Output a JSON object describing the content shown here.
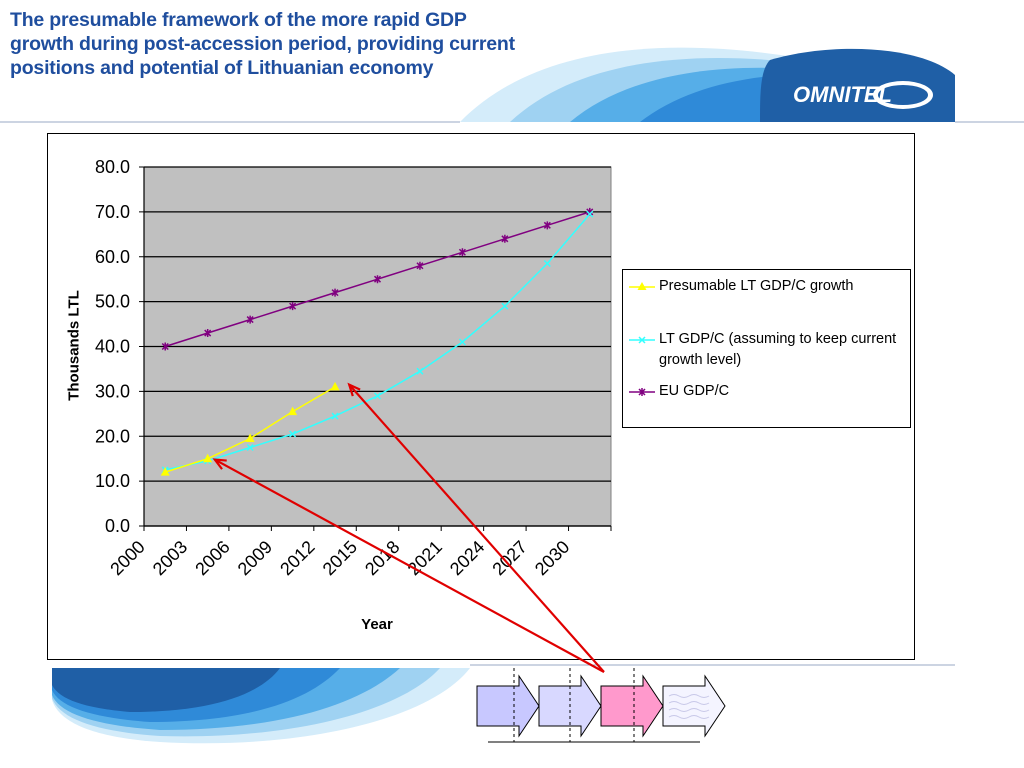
{
  "slide": {
    "title": "The presumable framework of the more rapid GDP growth during post-accession period, providing current positions and potential of Lithuanian economy",
    "logo_text": "OMNITEL"
  },
  "colors": {
    "title": "#1f4e9e",
    "plot_background": "#c0c0c0",
    "presumable_series": "#ffff00",
    "lt_series": "#33ffff",
    "eu_series": "#800080",
    "arrows": "#e00000",
    "swoosh_dark": "#1f5fa6",
    "swoosh_mid": "#2f8ad8",
    "swoosh_light": "#9fd2f2"
  },
  "chart_data": {
    "type": "line",
    "title": "",
    "xlabel": "Year",
    "ylabel": "Thousands LTL",
    "x_tick_labels": [
      "2000",
      "2003",
      "2006",
      "2009",
      "2012",
      "2015",
      "2018",
      "2021",
      "2024",
      "2027",
      "2030"
    ],
    "x_range": [
      2000,
      2033
    ],
    "ylim": [
      0,
      80
    ],
    "y_tick_labels": [
      "0.0",
      "10.0",
      "20.0",
      "30.0",
      "40.0",
      "50.0",
      "60.0",
      "70.0",
      "80.0"
    ],
    "grid": "horizontal",
    "legend_position": "right",
    "series": [
      {
        "name": "Presumable LT GDP/C growth",
        "color": "#ffff00",
        "marker": "triangle",
        "x": [
          2001.5,
          2004.5,
          2007.5,
          2010.5,
          2013.5
        ],
        "y": [
          12.0,
          15.0,
          19.5,
          25.5,
          31.0
        ]
      },
      {
        "name": "LT GDP/C (assuming to keep current growth level)",
        "color": "#33ffff",
        "marker": "x",
        "x": [
          2001.5,
          2004.5,
          2007.5,
          2010.5,
          2013.5,
          2016.5,
          2019.5,
          2022.5,
          2025.5,
          2028.5,
          2031.5
        ],
        "y": [
          12.5,
          14.5,
          17.5,
          20.5,
          24.5,
          29.0,
          34.5,
          41.0,
          49.0,
          58.5,
          69.5
        ]
      },
      {
        "name": "EU GDP/C",
        "color": "#800080",
        "marker": "asterisk",
        "x": [
          2001.5,
          2004.5,
          2007.5,
          2010.5,
          2013.5,
          2016.5,
          2019.5,
          2022.5,
          2025.5,
          2028.5,
          2031.5
        ],
        "y": [
          40.0,
          43.0,
          46.0,
          49.0,
          52.0,
          55.0,
          58.0,
          61.0,
          64.0,
          67.0,
          70.0
        ]
      }
    ],
    "annotations": [
      {
        "type": "arrow",
        "points_to": {
          "x": 2005.0,
          "y": 14.8
        }
      },
      {
        "type": "arrow",
        "points_to": {
          "x": 2014.5,
          "y": 31.5
        }
      }
    ]
  },
  "process_diagram": {
    "steps": [
      {
        "fill": "#c8c8ff"
      },
      {
        "fill": "#d8d8ff"
      },
      {
        "fill": "#ff99cc"
      },
      {
        "fill": "#f4f4ff"
      }
    ],
    "highlighted_step": 3
  }
}
